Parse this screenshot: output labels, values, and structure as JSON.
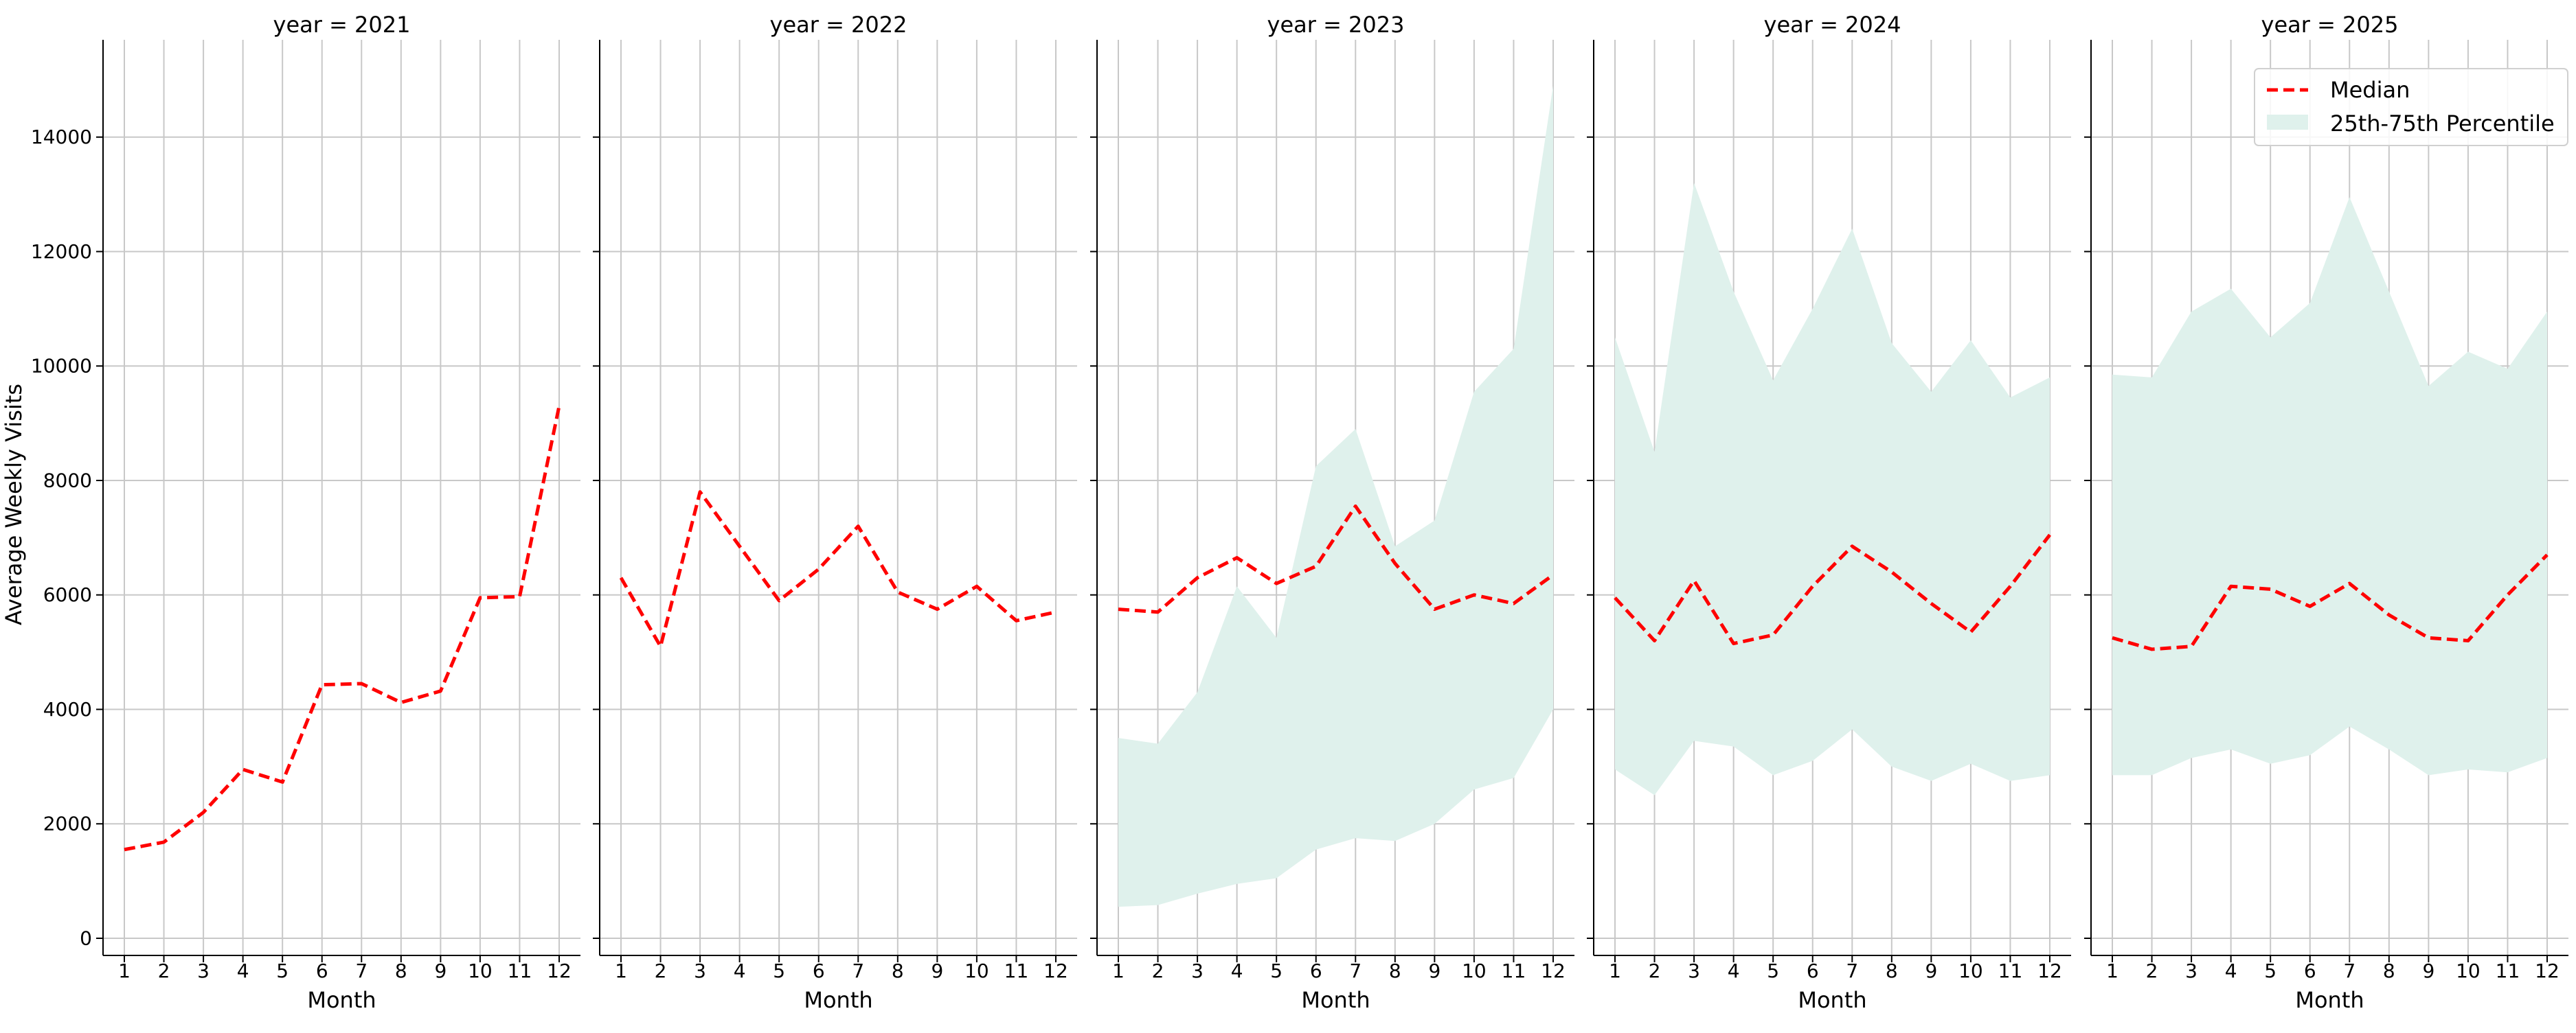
{
  "figure": {
    "ylabel": "Average Weekly Visits",
    "xlabel": "Month",
    "legend": {
      "placement": "top-right",
      "median_label": "Median",
      "band_label": "25th-75th Percentile"
    },
    "colors": {
      "median": "#ff0000",
      "band": "#dff1ec",
      "grid": "#c8c8c8",
      "axis": "#000000"
    }
  },
  "chart_data": [
    {
      "type": "line",
      "title": "year = 2021",
      "x": [
        1,
        2,
        3,
        4,
        5,
        6,
        7,
        8,
        9,
        10,
        11,
        12
      ],
      "xlabel": "Month",
      "ylabel": "Average Weekly Visits",
      "ylim": [
        -300,
        15700
      ],
      "yticks": [
        0,
        2000,
        4000,
        6000,
        8000,
        10000,
        12000,
        14000
      ],
      "grid": true,
      "series": [
        {
          "name": "Median",
          "style": "dashed",
          "values": [
            1550,
            1680,
            2200,
            2950,
            2730,
            4430,
            4450,
            4120,
            4320,
            5950,
            5970,
            9300
          ]
        }
      ],
      "band": null
    },
    {
      "type": "line",
      "title": "year = 2022",
      "x": [
        1,
        2,
        3,
        4,
        5,
        6,
        7,
        8,
        9,
        10,
        11,
        12
      ],
      "xlabel": "Month",
      "ylim": [
        -300,
        15700
      ],
      "grid": true,
      "series": [
        {
          "name": "Median",
          "style": "dashed",
          "values": [
            6300,
            5100,
            7800,
            6850,
            5900,
            6450,
            7200,
            6050,
            5750,
            6150,
            5550,
            5700
          ]
        }
      ],
      "band": null
    },
    {
      "type": "area",
      "title": "year = 2023",
      "x": [
        1,
        2,
        3,
        4,
        5,
        6,
        7,
        8,
        9,
        10,
        11,
        12
      ],
      "xlabel": "Month",
      "ylim": [
        -300,
        15700
      ],
      "grid": true,
      "series": [
        {
          "name": "Median",
          "style": "dashed",
          "values": [
            5750,
            5700,
            6300,
            6650,
            6200,
            6500,
            7550,
            6550,
            5750,
            6000,
            5850,
            6350
          ]
        }
      ],
      "band": {
        "name": "25th-75th Percentile",
        "low": [
          550,
          580,
          780,
          950,
          1050,
          1550,
          1750,
          1700,
          2000,
          2600,
          2800,
          4000
        ],
        "high": [
          3500,
          3400,
          4300,
          6150,
          5250,
          8250,
          8900,
          6850,
          7300,
          9550,
          10300,
          14900
        ]
      }
    },
    {
      "type": "area",
      "title": "year = 2024",
      "x": [
        1,
        2,
        3,
        4,
        5,
        6,
        7,
        8,
        9,
        10,
        11,
        12
      ],
      "xlabel": "Month",
      "ylim": [
        -300,
        15700
      ],
      "grid": true,
      "series": [
        {
          "name": "Median",
          "style": "dashed",
          "values": [
            5950,
            5200,
            6250,
            5150,
            5300,
            6150,
            6850,
            6400,
            5850,
            5350,
            6150,
            7050
          ]
        }
      ],
      "band": {
        "name": "25th-75th Percentile",
        "low": [
          2950,
          2500,
          3450,
          3350,
          2850,
          3100,
          3650,
          3000,
          2750,
          3050,
          2750,
          2850
        ],
        "high": [
          10500,
          8500,
          13200,
          11300,
          9750,
          11000,
          12400,
          10400,
          9550,
          10450,
          9450,
          9800
        ]
      }
    },
    {
      "type": "area",
      "title": "year = 2025",
      "x": [
        1,
        2,
        3,
        4,
        5,
        6,
        7,
        8,
        9,
        10,
        11,
        12
      ],
      "xlabel": "Month",
      "ylim": [
        -300,
        15700
      ],
      "grid": true,
      "series": [
        {
          "name": "Median",
          "style": "dashed",
          "values": [
            5250,
            5050,
            5100,
            6150,
            6100,
            5800,
            6200,
            5650,
            5250,
            5200,
            6000,
            6700
          ]
        }
      ],
      "band": {
        "name": "25th-75th Percentile",
        "low": [
          2850,
          2850,
          3150,
          3300,
          3050,
          3200,
          3700,
          3300,
          2850,
          2950,
          2900,
          3150
        ],
        "high": [
          9850,
          9800,
          10950,
          11350,
          10500,
          11100,
          12950,
          11300,
          9650,
          10250,
          9950,
          10950
        ]
      }
    }
  ]
}
